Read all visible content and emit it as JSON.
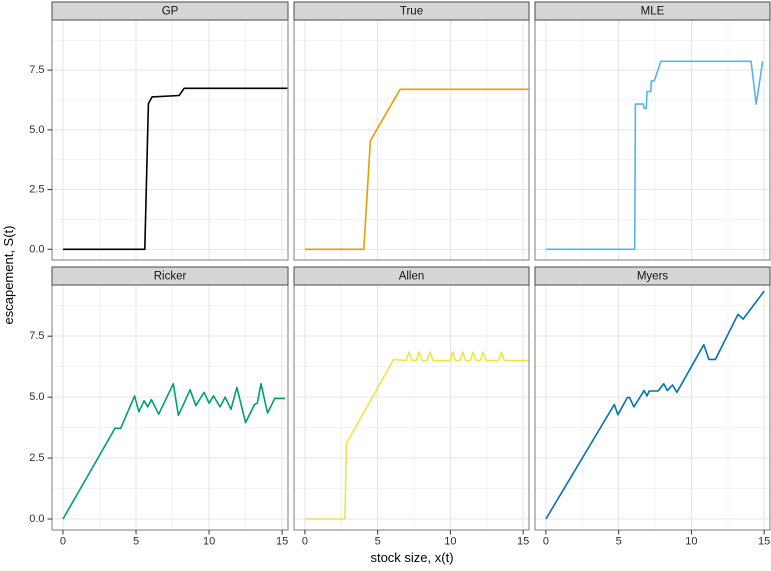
{
  "chart_data": {
    "type": "line",
    "title": "",
    "xlabel": "stock size, x(t)",
    "ylabel": "escapement, S(t)",
    "xlim": [
      -0.75,
      15.4
    ],
    "ylim": [
      -0.45,
      9.6
    ],
    "x_major_ticks": [
      0,
      5,
      10,
      15
    ],
    "x_minor_ticks": [
      2.5,
      7.5,
      12.5
    ],
    "y_major_ticks": [
      0,
      2.5,
      5,
      7.5
    ],
    "y_minor_ticks": [
      1.25,
      3.75,
      6.25,
      8.75
    ],
    "x_tick_labels": [
      "0",
      "5",
      "10",
      "15"
    ],
    "y_tick_labels": [
      "0.0",
      "2.5",
      "5.0",
      "7.5"
    ],
    "grid": "major+minor",
    "legend": "none",
    "facet_grid": {
      "rows": 2,
      "cols": 3,
      "row1": [
        "GP",
        "True",
        "MLE"
      ],
      "row2": [
        "Ricker",
        "Allen",
        "Myers"
      ]
    },
    "facets": [
      {
        "label": "GP",
        "color": "#000000",
        "points": [
          [
            0,
            0
          ],
          [
            5.6,
            0
          ],
          [
            5.85,
            6.1
          ],
          [
            6.1,
            6.38
          ],
          [
            7.95,
            6.44
          ],
          [
            8.3,
            6.74
          ],
          [
            15.35,
            6.74
          ]
        ]
      },
      {
        "label": "True",
        "color": "#E69F00",
        "points": [
          [
            0,
            0
          ],
          [
            4.05,
            0
          ],
          [
            4.5,
            4.55
          ],
          [
            6.55,
            6.7
          ],
          [
            15.35,
            6.7
          ]
        ]
      },
      {
        "label": "MLE",
        "color": "#56B4E9",
        "points": [
          [
            0,
            0
          ],
          [
            6.1,
            0
          ],
          [
            6.15,
            6.08
          ],
          [
            6.7,
            6.08
          ],
          [
            6.75,
            5.9
          ],
          [
            6.9,
            5.9
          ],
          [
            6.95,
            6.6
          ],
          [
            7.2,
            6.6
          ],
          [
            7.25,
            7.05
          ],
          [
            7.45,
            7.05
          ],
          [
            7.9,
            7.87
          ],
          [
            14.1,
            7.87
          ],
          [
            14.45,
            6.08
          ],
          [
            14.9,
            7.87
          ]
        ]
      },
      {
        "label": "Ricker",
        "color": "#009E73",
        "points": [
          [
            0,
            0
          ],
          [
            3.4,
            3.55
          ],
          [
            3.55,
            3.72
          ],
          [
            3.95,
            3.72
          ],
          [
            4.9,
            5.05
          ],
          [
            5.2,
            4.4
          ],
          [
            5.55,
            4.85
          ],
          [
            5.8,
            4.6
          ],
          [
            6.05,
            4.9
          ],
          [
            6.55,
            4.3
          ],
          [
            7.55,
            5.55
          ],
          [
            7.9,
            4.25
          ],
          [
            8.7,
            5.3
          ],
          [
            9.1,
            4.65
          ],
          [
            9.65,
            5.2
          ],
          [
            10.0,
            4.75
          ],
          [
            10.3,
            5.05
          ],
          [
            10.75,
            4.6
          ],
          [
            11.1,
            5.0
          ],
          [
            11.5,
            4.5
          ],
          [
            11.9,
            5.4
          ],
          [
            12.5,
            3.95
          ],
          [
            13.1,
            4.7
          ],
          [
            13.3,
            4.75
          ],
          [
            13.55,
            5.55
          ],
          [
            14.0,
            4.35
          ],
          [
            14.5,
            4.95
          ],
          [
            15.2,
            4.95
          ]
        ]
      },
      {
        "label": "Allen",
        "color": "#F0E442",
        "points": [
          [
            0,
            0
          ],
          [
            2.75,
            0
          ],
          [
            2.85,
            3.1
          ],
          [
            6.1,
            6.55
          ],
          [
            6.95,
            6.5
          ],
          [
            7.15,
            6.85
          ],
          [
            7.35,
            6.5
          ],
          [
            7.65,
            6.5
          ],
          [
            7.85,
            6.85
          ],
          [
            8.05,
            6.5
          ],
          [
            8.4,
            6.5
          ],
          [
            8.6,
            6.85
          ],
          [
            8.8,
            6.5
          ],
          [
            10.0,
            6.5
          ],
          [
            10.15,
            6.85
          ],
          [
            10.35,
            6.5
          ],
          [
            10.65,
            6.5
          ],
          [
            10.85,
            6.85
          ],
          [
            11.05,
            6.5
          ],
          [
            11.35,
            6.5
          ],
          [
            11.55,
            6.85
          ],
          [
            11.75,
            6.5
          ],
          [
            12.05,
            6.5
          ],
          [
            12.25,
            6.85
          ],
          [
            12.45,
            6.5
          ],
          [
            13.3,
            6.5
          ],
          [
            13.5,
            6.85
          ],
          [
            13.7,
            6.5
          ],
          [
            15.35,
            6.5
          ]
        ]
      },
      {
        "label": "Myers",
        "color": "#0072B2",
        "points": [
          [
            0,
            0
          ],
          [
            4.7,
            4.7
          ],
          [
            4.95,
            4.28
          ],
          [
            5.6,
            4.98
          ],
          [
            5.75,
            4.98
          ],
          [
            6.05,
            4.6
          ],
          [
            6.75,
            5.27
          ],
          [
            6.95,
            5.05
          ],
          [
            7.1,
            5.25
          ],
          [
            7.7,
            5.25
          ],
          [
            8.1,
            5.55
          ],
          [
            8.35,
            5.27
          ],
          [
            8.7,
            5.5
          ],
          [
            9.0,
            5.2
          ],
          [
            10.85,
            7.15
          ],
          [
            11.2,
            6.55
          ],
          [
            11.65,
            6.55
          ],
          [
            13.2,
            8.4
          ],
          [
            13.55,
            8.2
          ],
          [
            15.0,
            9.35
          ]
        ]
      }
    ]
  },
  "theme": {
    "strip_fill": "#d6d6d6",
    "strip_border": "#4a4a4a",
    "strip_text_color": "#141414",
    "panel_fill": "#ffffff",
    "panel_border": "#7f7f7f",
    "grid_major_color": "#e6e6e6",
    "grid_minor_color": "#f3f3f3",
    "tick_color": "#333333",
    "tick_label_color": "#303030",
    "axis_title_color": "#000000",
    "background": "#ffffff"
  }
}
